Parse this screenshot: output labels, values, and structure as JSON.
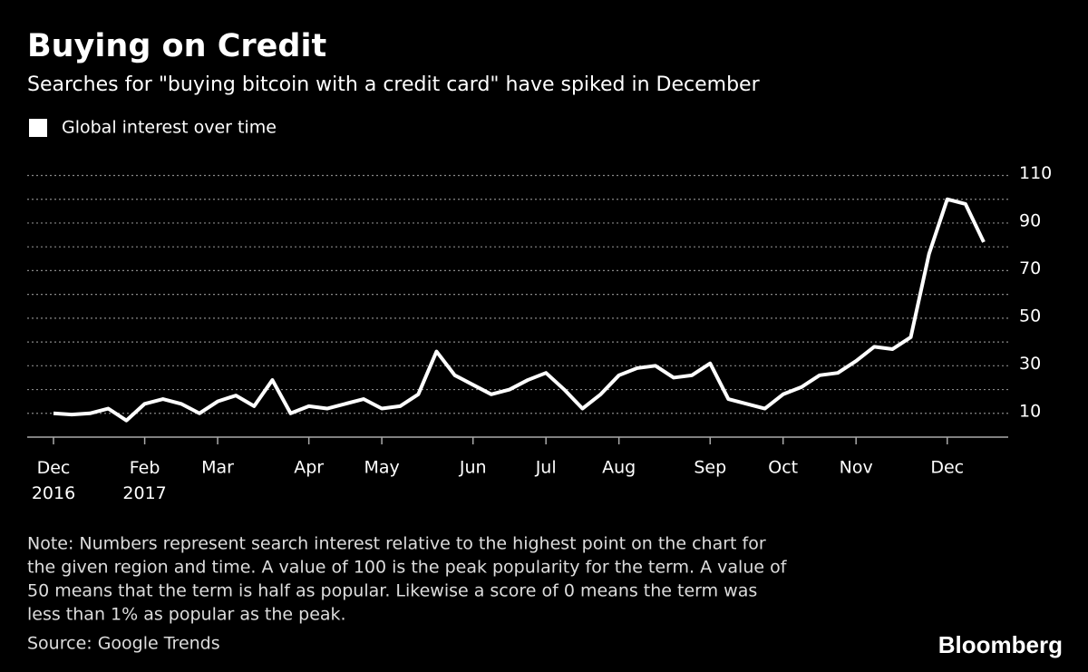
{
  "chart_data": {
    "type": "line",
    "title": "Buying on Credit",
    "subtitle": "Searches for \"buying bitcoin with a credit card\" have spiked in December",
    "categories": [
      "Dec 2016",
      null,
      null,
      null,
      null,
      "Feb 2017",
      null,
      null,
      null,
      "Mar",
      null,
      null,
      null,
      null,
      "Apr",
      null,
      null,
      null,
      "May",
      null,
      null,
      null,
      null,
      "Jun",
      null,
      null,
      null,
      "Jul",
      null,
      null,
      null,
      "Aug",
      null,
      null,
      null,
      null,
      "Sep",
      null,
      null,
      null,
      "Oct",
      null,
      null,
      null,
      "Nov",
      null,
      null,
      null,
      null,
      "Dec",
      null,
      null
    ],
    "series": [
      {
        "name": "Global interest over time",
        "color": "#ffffff",
        "values": [
          10,
          9.5,
          10,
          12,
          7,
          14,
          16,
          14,
          10,
          15,
          17.5,
          13,
          24,
          10,
          13,
          12,
          14,
          16,
          12,
          13,
          18,
          36,
          26,
          22,
          18,
          20,
          24,
          27,
          20,
          12,
          18,
          26,
          29,
          30,
          25,
          26,
          31,
          16,
          14,
          12,
          18,
          21,
          26,
          27,
          32,
          38,
          37,
          42,
          77,
          100,
          98,
          82
        ]
      }
    ],
    "ylim": [
      0,
      110
    ],
    "yticks": [
      10,
      30,
      50,
      70,
      90,
      110
    ],
    "minor_yticks": [
      20,
      40,
      60,
      80,
      100
    ],
    "grid": true,
    "note": [
      "Note: Numbers represent search interest relative to the highest point on the chart for",
      "the given region and time. A value of 100 is the peak popularity for the term. A value of",
      "50 means that the term is half as popular. Likewise a score of 0 means the term was",
      "less than 1% as popular as the peak."
    ],
    "source": "Source: Google Trends",
    "brand": "Bloomberg"
  }
}
